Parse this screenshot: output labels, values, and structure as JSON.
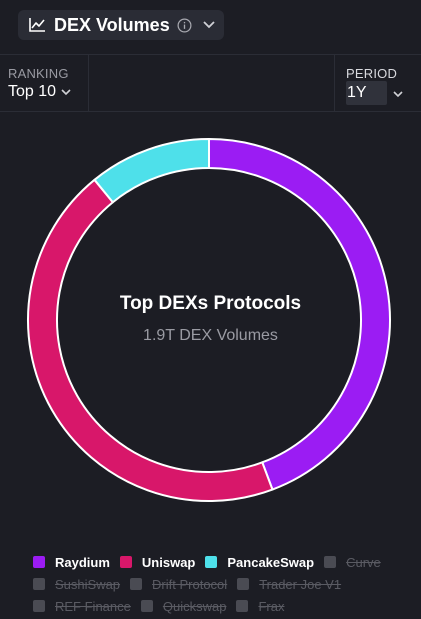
{
  "header": {
    "title": "DEX Volumes"
  },
  "controls": {
    "ranking_label": "RANKING",
    "ranking_value": "Top 10",
    "period_label": "PERIOD",
    "period_value": "1Y"
  },
  "chart_data": {
    "type": "pie",
    "style": "donut",
    "center_title": "Top DEXs Protocols",
    "center_subtitle": "1.9T DEX Volumes",
    "slices": [
      {
        "name": "Raydium",
        "value": 44.3,
        "color": "#9b1cf3"
      },
      {
        "name": "Uniswap",
        "value": 44.8,
        "color": "#d8176a"
      },
      {
        "name": "PancakeSwap",
        "value": 10.9,
        "color": "#4ee0ea"
      }
    ]
  },
  "legend": {
    "items": [
      {
        "label": "Raydium",
        "color": "#9b1cf3",
        "active": true
      },
      {
        "label": "Uniswap",
        "color": "#d8176a",
        "active": true
      },
      {
        "label": "PancakeSwap",
        "color": "#4ee0ea",
        "active": true
      },
      {
        "label": "Curve",
        "color": "#4a4b53",
        "active": false
      },
      {
        "label": "SushiSwap",
        "color": "#4a4b53",
        "active": false
      },
      {
        "label": "Drift Protocol",
        "color": "#4a4b53",
        "active": false
      },
      {
        "label": "Trader Joe V1",
        "color": "#4a4b53",
        "active": false
      },
      {
        "label": "REF Finance",
        "color": "#4a4b53",
        "active": false
      },
      {
        "label": "Quickswap",
        "color": "#4a4b53",
        "active": false
      },
      {
        "label": "Frax",
        "color": "#4a4b53",
        "active": false
      }
    ]
  }
}
